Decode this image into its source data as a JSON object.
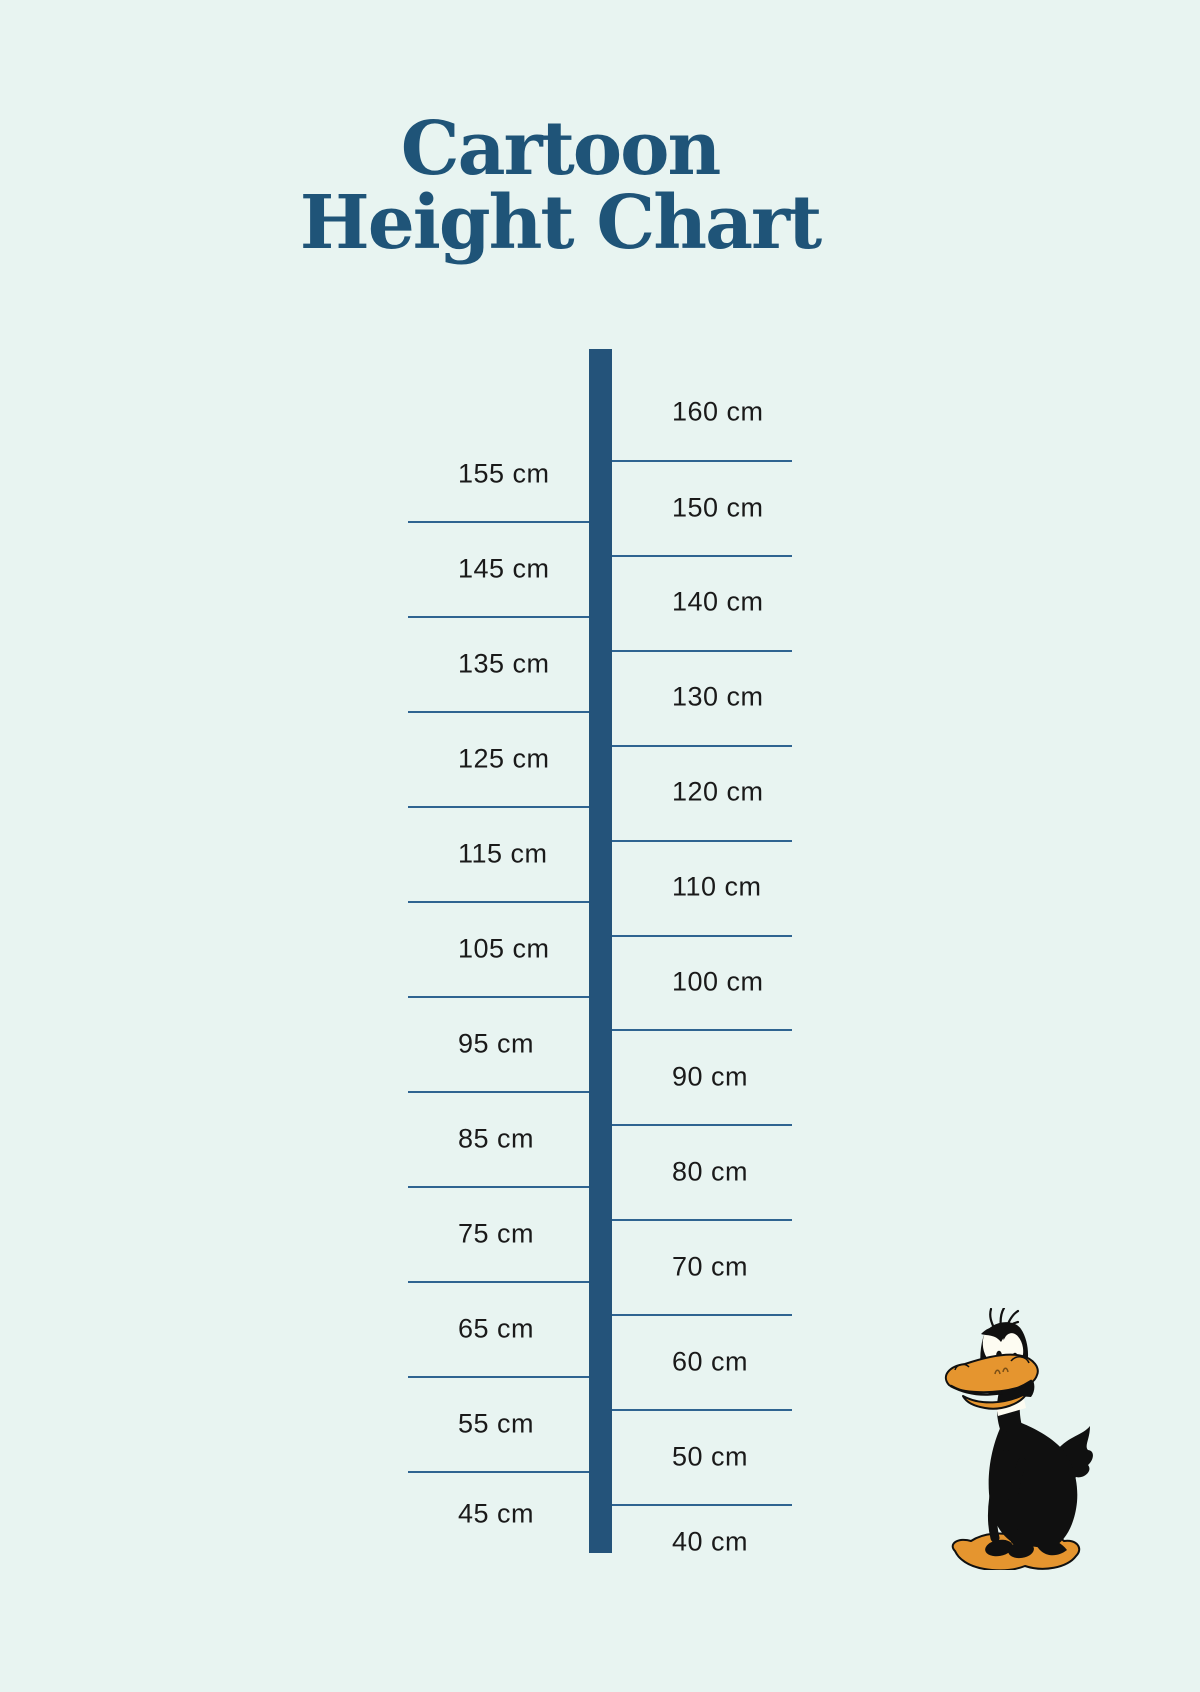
{
  "page": {
    "background_color": "#e8f4f1",
    "title_color": "#1f5478",
    "bar_color": "#24537a",
    "tick_line_color": "#2f6491",
    "label_color": "#1a1a1a"
  },
  "header": {
    "title_line1": "Cartoon",
    "title_line2": "Height Chart"
  },
  "chart_data": {
    "type": "table",
    "title": "Cartoon Height Chart",
    "unit": "cm",
    "orientation": "vertical",
    "scale_step_cm": 10,
    "scale_range_cm": [
      40,
      160
    ],
    "left_scale_values_cm": [
      155,
      145,
      135,
      125,
      115,
      105,
      95,
      85,
      75,
      65,
      55,
      45
    ],
    "right_scale_values_cm": [
      160,
      150,
      140,
      130,
      120,
      110,
      100,
      90,
      80,
      70,
      60,
      50,
      40
    ],
    "left_scale_labels": [
      "155 cm",
      "145 cm",
      "135 cm",
      "125 cm",
      "115 cm",
      "105 cm",
      "95 cm",
      "85 cm",
      "75 cm",
      "65 cm",
      "55 cm",
      "45 cm"
    ],
    "right_scale_labels": [
      "160 cm",
      "150 cm",
      "140 cm",
      "130 cm",
      "120 cm",
      "110 cm",
      "100 cm",
      "90 cm",
      "80 cm",
      "70 cm",
      "60 cm",
      "50 cm",
      "40 cm"
    ]
  },
  "character": {
    "name": "daffy-duck",
    "description": "Daffy Duck cartoon character standing on webbed feet at bottom right",
    "body_color": "#101010",
    "bill_color": "#e5952f",
    "eye_color": "#fdfcf2"
  }
}
